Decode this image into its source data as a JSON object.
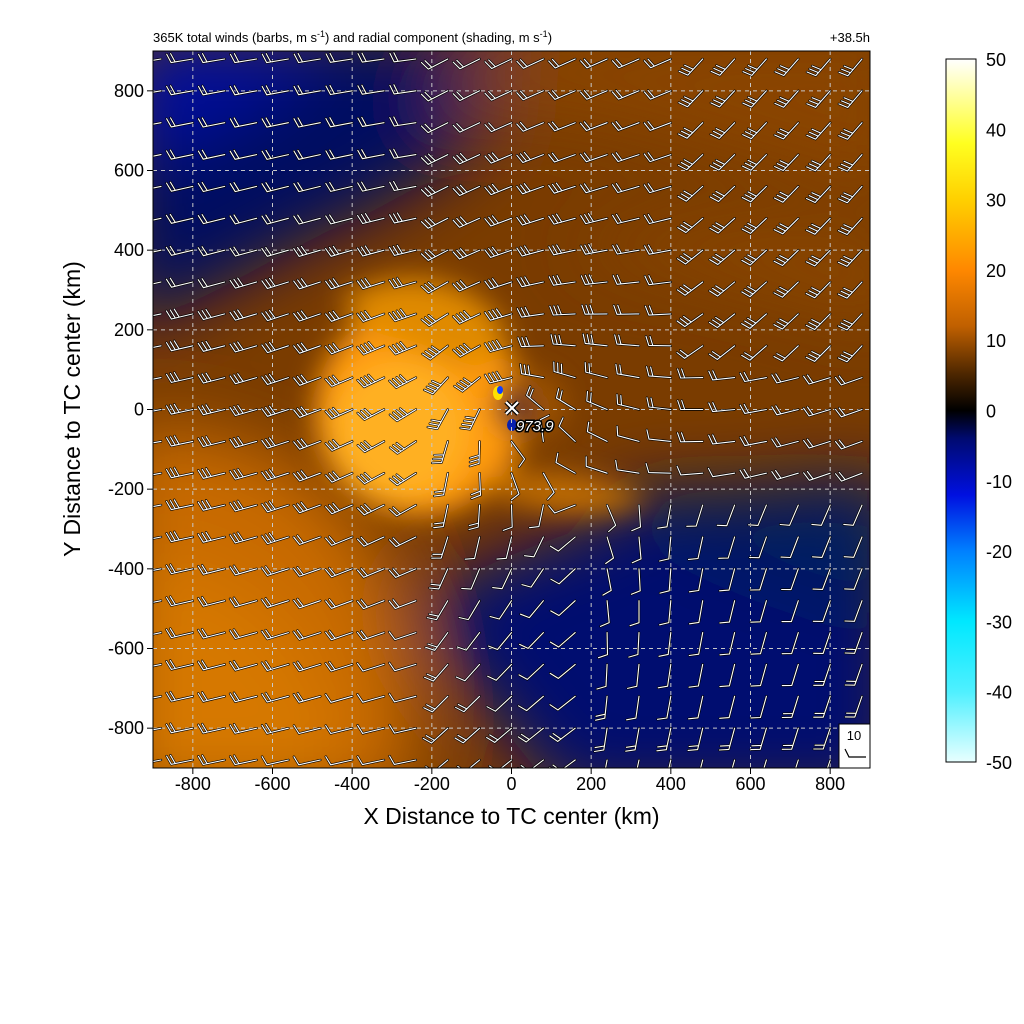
{
  "chart_data": {
    "type": "heatmap",
    "title_prefix": "365K total winds (barbs, m s",
    "title_mid": ") and radial component (shading, m s",
    "title_suffix": ")",
    "title_exp": "-1",
    "time_label": "+38.5h",
    "xlabel": "X Distance to TC center (km)",
    "ylabel": "Y Distance to TC center (km)",
    "xlim": [
      -900,
      900
    ],
    "ylim": [
      -900,
      900
    ],
    "xticks": [
      -800,
      -600,
      -400,
      -200,
      0,
      200,
      400,
      600,
      800
    ],
    "yticks": [
      -800,
      -600,
      -400,
      -200,
      0,
      200,
      400,
      600,
      800
    ],
    "grid": true,
    "center_marker": {
      "x": 0,
      "y": 0,
      "label": "973.9"
    },
    "barb_key": {
      "label": "10"
    },
    "colorbar": {
      "min": -50,
      "max": 50,
      "ticks": [
        50,
        40,
        30,
        20,
        10,
        0,
        -10,
        -20,
        -30,
        -40,
        -50
      ],
      "stops": [
        {
          "value": -50,
          "color": "#e8ffff"
        },
        {
          "value": -40,
          "color": "#4ff0ff"
        },
        {
          "value": -30,
          "color": "#00e8ff"
        },
        {
          "value": -20,
          "color": "#0080ff"
        },
        {
          "value": -12,
          "color": "#0010e0"
        },
        {
          "value": -4,
          "color": "#000a70"
        },
        {
          "value": 0,
          "color": "#000000"
        },
        {
          "value": 5,
          "color": "#4a2500"
        },
        {
          "value": 12,
          "color": "#c06000"
        },
        {
          "value": 20,
          "color": "#ff8800"
        },
        {
          "value": 30,
          "color": "#ffd000"
        },
        {
          "value": 38,
          "color": "#ffff20"
        },
        {
          "value": 50,
          "color": "#ffffff"
        }
      ]
    },
    "shading_features": {
      "outflow_jet_core": {
        "x": -260,
        "y": -20,
        "value": 26
      },
      "southwest_outflow": {
        "x": -650,
        "y": -500,
        "value": 19
      },
      "northeast_outflow": {
        "x": 600,
        "y": 500,
        "value": 10
      },
      "northwest_inflow": {
        "x": -750,
        "y": 700,
        "value": -8
      },
      "southeast_inflow": {
        "x": 400,
        "y": -550,
        "value": -9
      }
    }
  }
}
